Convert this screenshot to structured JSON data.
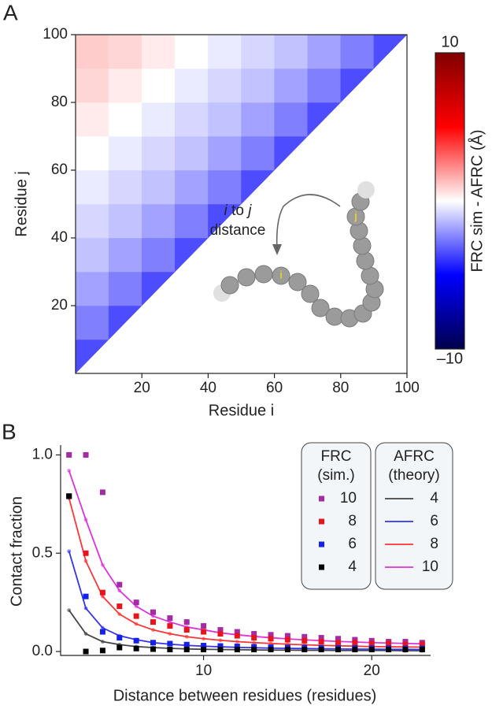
{
  "chart_data": [
    {
      "type": "heatmap",
      "panel": "A",
      "xlabel": "Residue i",
      "ylabel": "Residue j",
      "colorbar_label": "FRC sim - AFRC (Å)",
      "xbins": [
        0,
        10,
        20,
        30,
        40,
        50,
        60,
        70,
        80,
        90,
        100
      ],
      "ybins": [
        0,
        10,
        20,
        30,
        40,
        50,
        60,
        70,
        80,
        90,
        100
      ],
      "z": [
        [
          -3.5,
          null,
          null,
          null,
          null,
          null,
          null,
          null,
          null,
          null
        ],
        [
          -2.5,
          -3.5,
          null,
          null,
          null,
          null,
          null,
          null,
          null,
          null
        ],
        [
          -1.8,
          -2.5,
          -3.5,
          null,
          null,
          null,
          null,
          null,
          null,
          null
        ],
        [
          -1.2,
          -1.8,
          -2.5,
          -3.5,
          null,
          null,
          null,
          null,
          null,
          null
        ],
        [
          -0.8,
          -1.2,
          -1.8,
          -2.5,
          -3.5,
          null,
          null,
          null,
          null,
          null
        ],
        [
          -0.4,
          -0.8,
          -1.2,
          -1.8,
          -2.5,
          -3.5,
          null,
          null,
          null,
          null
        ],
        [
          0,
          -0.4,
          -0.8,
          -1.2,
          -1.8,
          -2.5,
          -3.5,
          null,
          null,
          null
        ],
        [
          0.4,
          0,
          -0.4,
          -0.8,
          -1.2,
          -1.8,
          -2.5,
          -3.5,
          null,
          null
        ],
        [
          0.8,
          0.4,
          0,
          -0.4,
          -0.8,
          -1.2,
          -1.8,
          -2.5,
          -3.5,
          null
        ],
        [
          1.0,
          0.8,
          0.4,
          0,
          -0.4,
          -0.8,
          -1.2,
          -1.8,
          -2.5,
          -3.5
        ]
      ],
      "xlim": [
        0,
        100
      ],
      "ylim": [
        0,
        100
      ],
      "xticks": [
        20,
        40,
        60,
        80,
        100
      ],
      "yticks": [
        20,
        40,
        60,
        80,
        100
      ],
      "colormap": "seismic",
      "clim": [
        -10,
        10
      ],
      "cticks": [
        {
          "value": -10,
          "label": "–10"
        },
        10
      ],
      "annotation": {
        "line1": [
          "i",
          "to",
          "j"
        ],
        "line2": "distance"
      },
      "bead_labels": [
        "i",
        "j"
      ]
    },
    {
      "type": "line",
      "panel": "B",
      "xlabel": "Distance between residues (residues)",
      "ylabel": "Contact fraction",
      "x": [
        2,
        3,
        4,
        5,
        6,
        7,
        8,
        9,
        10,
        11,
        12,
        13,
        14,
        15,
        16,
        17,
        18,
        19,
        20,
        21,
        22,
        23
      ],
      "xlim": [
        1.5,
        23.5
      ],
      "ylim": [
        -0.02,
        1.05
      ],
      "xticks": [
        10,
        20
      ],
      "yticks": [
        {
          "value": 0,
          "label": "0.0"
        },
        {
          "value": 0.5,
          "label": "0.5"
        },
        {
          "value": 1,
          "label": "1.0"
        }
      ],
      "legend": "upper right",
      "legends": [
        {
          "title": [
            "FRC",
            "(sim.)"
          ]
        },
        {
          "title": [
            "AFRC",
            "(theory)"
          ]
        }
      ],
      "series": [
        {
          "name": "4",
          "style": "line",
          "legend_group": 1,
          "color": "#444444",
          "values": [
            0.21,
            0.09,
            0.05,
            0.035,
            0.025,
            0.02,
            0.016,
            0.013,
            0.011,
            0.01,
            0.009,
            0.008,
            0.007,
            0.007,
            0.006,
            0.006,
            0.005,
            0.005,
            0.005,
            0.005,
            0.004,
            0.004
          ]
        },
        {
          "name": "6",
          "style": "line",
          "legend_group": 1,
          "color": "#3333ee",
          "values": [
            0.51,
            0.22,
            0.12,
            0.08,
            0.06,
            0.045,
            0.037,
            0.031,
            0.027,
            0.024,
            0.021,
            0.019,
            0.017,
            0.016,
            0.015,
            0.014,
            0.013,
            0.012,
            0.012,
            0.011,
            0.011,
            0.01
          ]
        },
        {
          "name": "8",
          "style": "line",
          "legend_group": 1,
          "color": "#ff3333",
          "values": [
            0.78,
            0.46,
            0.28,
            0.19,
            0.14,
            0.11,
            0.09,
            0.075,
            0.065,
            0.057,
            0.05,
            0.045,
            0.041,
            0.037,
            0.034,
            0.031,
            0.029,
            0.027,
            0.025,
            0.024,
            0.023,
            0.022
          ]
        },
        {
          "name": "10",
          "style": "line",
          "legend_group": 1,
          "color": "#dd33dd",
          "values": [
            0.92,
            0.67,
            0.44,
            0.31,
            0.23,
            0.18,
            0.15,
            0.125,
            0.11,
            0.095,
            0.085,
            0.077,
            0.07,
            0.064,
            0.059,
            0.055,
            0.051,
            0.048,
            0.045,
            0.043,
            0.041,
            0.039
          ]
        },
        {
          "name": "10",
          "style": "marker",
          "legend_group": 0,
          "color": "#a52aa5",
          "values": [
            1.0,
            1.0,
            0.81,
            0.34,
            0.25,
            0.2,
            0.17,
            0.15,
            0.13,
            0.11,
            0.1,
            0.09,
            0.085,
            0.08,
            0.075,
            0.07,
            0.065,
            0.06,
            0.055,
            0.05,
            0.05,
            0.045
          ]
        },
        {
          "name": "8",
          "style": "marker",
          "legend_group": 0,
          "color": "#e8141c",
          "values": [
            0.79,
            0.5,
            0.3,
            0.23,
            0.18,
            0.15,
            0.13,
            0.11,
            0.1,
            0.09,
            0.08,
            0.07,
            0.065,
            0.06,
            0.055,
            0.05,
            0.045,
            0.045,
            0.04,
            0.04,
            0.035,
            0.035
          ]
        },
        {
          "name": "6",
          "style": "marker",
          "legend_group": 0,
          "color": "#1420e8",
          "values": [
            0.79,
            0.28,
            0.1,
            0.07,
            0.055,
            0.045,
            0.04,
            0.035,
            0.03,
            0.028,
            0.026,
            0.024,
            0.022,
            0.02,
            0.02,
            0.019,
            0.018,
            0.018,
            0.017,
            0.017,
            0.016,
            0.016
          ]
        },
        {
          "name": "4",
          "style": "marker",
          "legend_group": 0,
          "color": "#000000",
          "values": [
            0.79,
            0.0,
            0.005,
            0.02,
            0.015,
            0.012,
            0.01,
            0.01,
            0.01,
            0.01,
            0.01,
            0.01,
            0.01,
            0.01,
            0.01,
            0.01,
            0.01,
            0.01,
            0.01,
            0.01,
            0.01,
            0.01
          ]
        }
      ]
    }
  ]
}
